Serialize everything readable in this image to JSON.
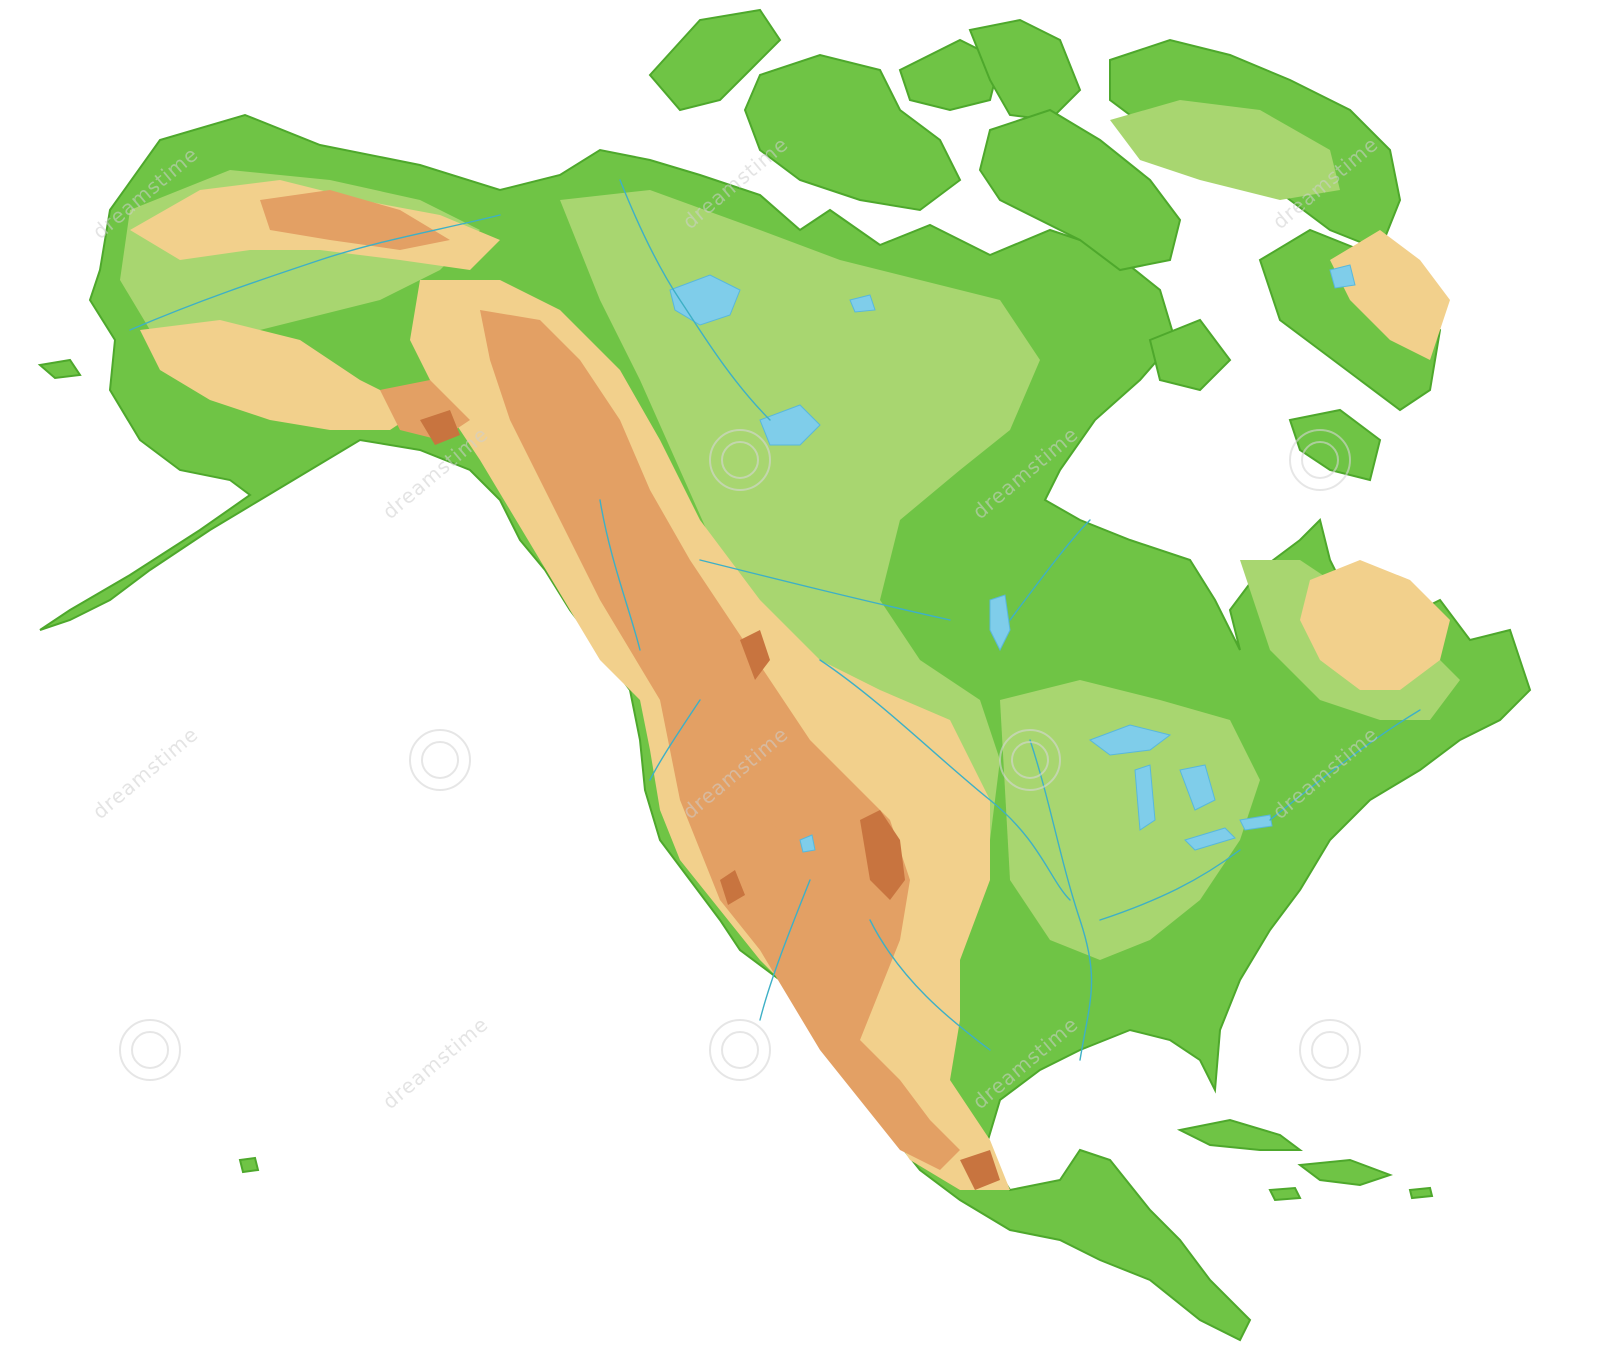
{
  "map": {
    "subject": "North America physical relief map",
    "colors": {
      "lowland": "#6fc445",
      "plains": "#a8d670",
      "upland": "#f2d08c",
      "mountain": "#e3a064",
      "peak": "#c8743f",
      "water": "#7fcdea",
      "background": "#ffffff"
    },
    "watermark": {
      "text": "dreamstime"
    }
  }
}
